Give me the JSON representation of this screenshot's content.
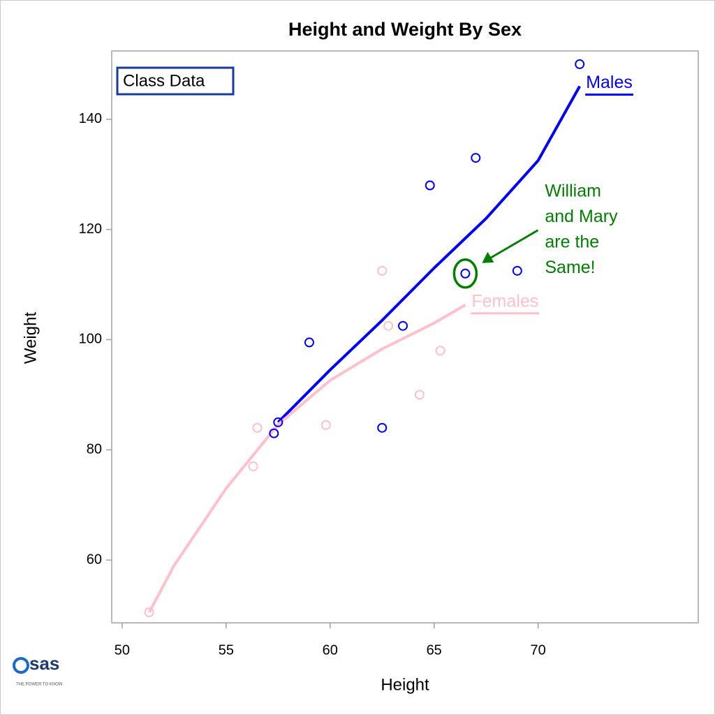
{
  "chart_data": {
    "type": "scatter",
    "title": "Height and Weight By Sex",
    "x_label": "Height",
    "y_label": "Weight",
    "xlim": [
      49.5,
      77.7
    ],
    "ylim": [
      48.6,
      152.4
    ],
    "xticks": [
      50,
      55,
      60,
      65,
      70
    ],
    "yticks": [
      60,
      80,
      100,
      120,
      140
    ],
    "grid": false,
    "inset_label": "Class Data",
    "series": [
      {
        "name": "Males",
        "color": "#0000ff",
        "x": [
          69.0,
          63.5,
          57.3,
          62.5,
          59.0,
          72.0,
          64.8,
          67.0,
          57.5,
          66.5
        ],
        "values": [
          112.5,
          102.5,
          83.0,
          84.0,
          99.5,
          150.0,
          128.0,
          133.0,
          85.0,
          112.0
        ],
        "fit": {
          "x": [
            57.5,
            60,
            62.5,
            65,
            67.5,
            70,
            72
          ],
          "values": [
            85,
            94.5,
            103.5,
            113,
            122,
            132.5,
            146
          ]
        }
      },
      {
        "name": "Females",
        "color": "#ffc0cb",
        "x": [
          56.5,
          65.3,
          62.8,
          59.8,
          62.5,
          51.3,
          64.3,
          56.3,
          66.5
        ],
        "values": [
          84.0,
          98.0,
          102.5,
          84.5,
          112.5,
          50.5,
          90.0,
          77.0,
          112.0
        ],
        "fit": {
          "x": [
            51.3,
            52.5,
            55,
            57.5,
            60,
            62.5,
            65,
            66.5
          ],
          "values": [
            50.5,
            59,
            73,
            84.6,
            92.6,
            98.3,
            103,
            106.3
          ]
        }
      }
    ],
    "annotation": {
      "lines": [
        "William",
        "and Mary",
        "are the",
        "Same!"
      ],
      "color": "#008000",
      "point_series": 0,
      "point_index": 9
    },
    "logo": {
      "text": "sas",
      "tagline": "THE POWER TO KNOW."
    }
  }
}
